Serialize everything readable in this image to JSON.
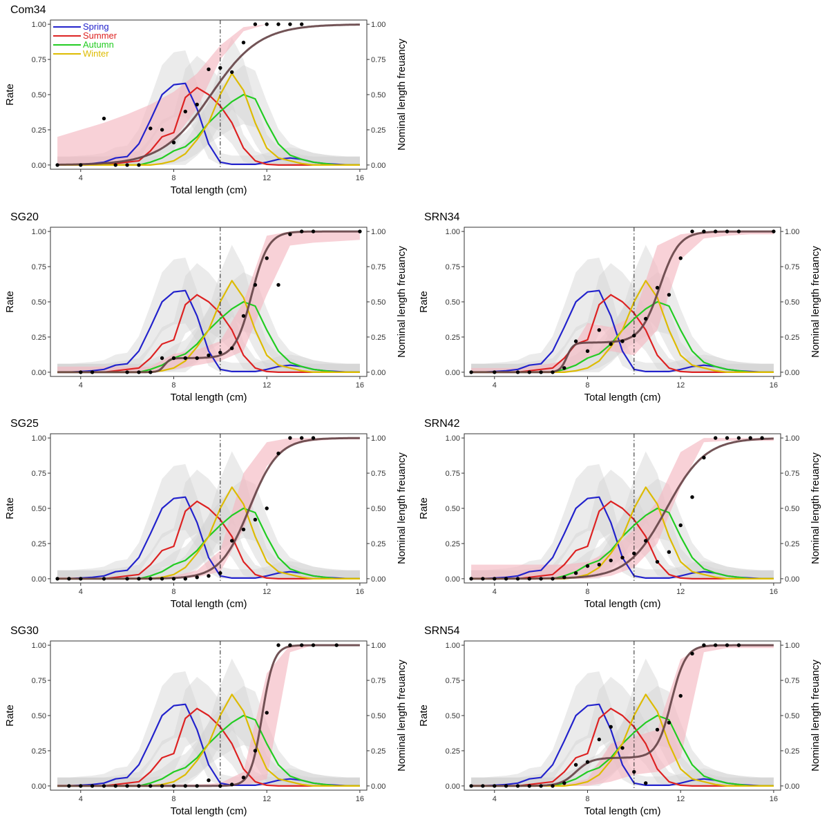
{
  "figure": {
    "xlabel": "Total length (cm)",
    "ylabel": "Rate",
    "y2label": "Nominal length freuancy",
    "xticks": [
      4,
      8,
      12,
      16
    ],
    "yticks": [
      "0.00",
      "0.25",
      "0.50",
      "0.75",
      "1.00"
    ],
    "reference_line_x": 10
  },
  "chart_data": {
    "type": "line",
    "xlim": [
      2.7,
      16.3
    ],
    "ylim": [
      -0.03,
      1.03
    ],
    "colors": {
      "Spring": "#2222cc",
      "Summer": "#dd2222",
      "Autumn": "#22cc22",
      "Winter": "#ddbb00",
      "fit": "#664448",
      "ribbon": "#f4b9c2",
      "band": "#d3d3d3",
      "points": "#000000"
    },
    "legend": {
      "placement": "top-left",
      "entries": [
        "Spring",
        "Summer",
        "Autumn",
        "Winter"
      ]
    },
    "seasons": [
      {
        "name": "Spring",
        "x": [
          3,
          3.5,
          4,
          4.5,
          5,
          5.5,
          6,
          6.5,
          7,
          7.5,
          8,
          8.5,
          9,
          9.5,
          10,
          10.5,
          11,
          11.5,
          12,
          12.5,
          13,
          13.5,
          14,
          14.5,
          15,
          15.5,
          16
        ],
        "values": [
          0,
          0,
          0.005,
          0.01,
          0.02,
          0.05,
          0.06,
          0.15,
          0.32,
          0.5,
          0.57,
          0.58,
          0.4,
          0.15,
          0.02,
          0.005,
          0.005,
          0.005,
          0.02,
          0.04,
          0.05,
          0.04,
          0.02,
          0.01,
          0.005,
          0,
          0
        ]
      },
      {
        "name": "Summer",
        "x": [
          3,
          3.5,
          4,
          4.5,
          5,
          5.5,
          6,
          6.5,
          7,
          7.5,
          8,
          8.5,
          9,
          9.5,
          10,
          10.5,
          11,
          11.5,
          12,
          12.5,
          13,
          13.5,
          14,
          14.5,
          15,
          15.5,
          16
        ],
        "values": [
          0,
          0,
          0,
          0,
          0,
          0.01,
          0.02,
          0.03,
          0.1,
          0.2,
          0.23,
          0.48,
          0.55,
          0.5,
          0.42,
          0.3,
          0.12,
          0.03,
          0.005,
          0,
          0,
          0,
          0,
          0,
          0,
          0,
          0
        ]
      },
      {
        "name": "Autumn",
        "x": [
          3,
          3.5,
          4,
          4.5,
          5,
          5.5,
          6,
          6.5,
          7,
          7.5,
          8,
          8.5,
          9,
          9.5,
          10,
          10.5,
          11,
          11.5,
          12,
          12.5,
          13,
          13.5,
          14,
          14.5,
          15,
          15.5,
          16
        ],
        "values": [
          0,
          0,
          0,
          0,
          0,
          0,
          0,
          0,
          0.02,
          0.05,
          0.1,
          0.13,
          0.2,
          0.3,
          0.38,
          0.45,
          0.5,
          0.47,
          0.3,
          0.15,
          0.07,
          0.04,
          0.02,
          0.01,
          0,
          0,
          0
        ]
      },
      {
        "name": "Winter",
        "x": [
          3,
          3.5,
          4,
          4.5,
          5,
          5.5,
          6,
          6.5,
          7,
          7.5,
          8,
          8.5,
          9,
          9.5,
          10,
          10.5,
          11,
          11.5,
          12,
          12.5,
          13,
          13.5,
          14,
          14.5,
          15,
          15.5,
          16
        ],
        "values": [
          0,
          0,
          0,
          0,
          0,
          0,
          0,
          0,
          0,
          0.01,
          0.03,
          0.08,
          0.18,
          0.3,
          0.5,
          0.65,
          0.53,
          0.3,
          0.12,
          0.05,
          0.03,
          0.01,
          0,
          0,
          0,
          0,
          0
        ]
      }
    ],
    "panels": [
      {
        "title": "Com34",
        "fit_type": "logistic",
        "L50": 9.6,
        "slope": 0.95,
        "ribbon_lo": [
          0.0,
          0.0,
          0.01,
          0.03,
          0.08,
          0.18,
          0.4,
          0.75,
          0.95,
          1.0,
          1.0,
          1.0,
          1.0,
          1.0
        ],
        "ribbon_hi": [
          0.2,
          0.25,
          0.3,
          0.36,
          0.43,
          0.52,
          0.65,
          0.85,
          0.98,
          1.0,
          1.0,
          1.0,
          1.0,
          1.0
        ],
        "points_x": [
          3,
          4,
          5,
          5.5,
          6,
          6.5,
          7,
          7.5,
          8,
          8.5,
          9,
          9.5,
          10,
          10.5,
          11,
          11.5,
          12,
          12.5,
          13,
          13.5
        ],
        "points_y": [
          0,
          0,
          0.33,
          0,
          0,
          0,
          0.26,
          0.25,
          0.16,
          0.38,
          0.43,
          0.68,
          0.69,
          0.66,
          0.87,
          1,
          1,
          1,
          1,
          1
        ]
      },
      {
        "title": "SG20",
        "fit_type": "mixture",
        "w1": 0.1,
        "c1": 7.6,
        "s1": 8,
        "c2": 11.35,
        "s2": 2.8,
        "ribbon_lo": [
          0.0,
          0.0,
          0.0,
          0.0,
          0.0,
          0.02,
          0.05,
          0.08,
          0.15,
          0.55,
          0.9,
          0.92,
          0.93,
          0.94
        ],
        "ribbon_hi": [
          0.04,
          0.04,
          0.04,
          0.04,
          0.04,
          0.13,
          0.16,
          0.22,
          0.5,
          0.97,
          1.0,
          1.0,
          1.0,
          1.0
        ],
        "points_x": [
          4,
          4.5,
          6,
          6.5,
          7,
          7.5,
          8,
          8.5,
          9,
          9.5,
          10,
          10.5,
          11,
          11.5,
          12,
          12.5,
          13,
          13.5,
          14,
          16
        ],
        "points_y": [
          0,
          0,
          0,
          0,
          0,
          0.1,
          0.1,
          0.1,
          0.1,
          0.12,
          0.14,
          0.17,
          0.4,
          0.62,
          0.81,
          0.62,
          0.98,
          1,
          1,
          1
        ]
      },
      {
        "title": "SRN34",
        "fit_type": "mixture",
        "w1": 0.21,
        "c1": 7.1,
        "s1": 7,
        "c2": 11.1,
        "s2": 2.4,
        "ribbon_lo": [
          0.0,
          0.0,
          0.0,
          0.0,
          0.0,
          0.1,
          0.15,
          0.12,
          0.3,
          0.8,
          0.95,
          0.97,
          0.98,
          0.98
        ],
        "ribbon_hi": [
          0.03,
          0.03,
          0.03,
          0.05,
          0.08,
          0.35,
          0.32,
          0.4,
          0.9,
          0.98,
          1.0,
          1.0,
          1.0,
          1.0
        ],
        "points_x": [
          3,
          4,
          5,
          5.5,
          6,
          6.5,
          7,
          7.5,
          8,
          8.5,
          9,
          9.5,
          10,
          10.5,
          11,
          11.5,
          12,
          12.5,
          13,
          13.5,
          14,
          14.5,
          16
        ],
        "points_y": [
          0,
          0,
          0,
          0,
          0,
          0,
          0.03,
          0.22,
          0.15,
          0.3,
          0.2,
          0.22,
          0.26,
          0.38,
          0.6,
          0.55,
          0.81,
          1,
          1,
          1,
          1,
          1,
          1
        ]
      },
      {
        "title": "SG25",
        "fit_type": "logistic",
        "L50": 11.25,
        "slope": 1.6,
        "ribbon_lo": [
          0.0,
          0.0,
          0.0,
          0.0,
          0.0,
          0.0,
          0.01,
          0.05,
          0.35,
          0.8,
          0.95,
          0.98,
          0.99,
          0.99
        ],
        "ribbon_hi": [
          0.01,
          0.01,
          0.01,
          0.01,
          0.01,
          0.02,
          0.06,
          0.2,
          0.75,
          0.97,
          1.0,
          1.0,
          1.0,
          1.0
        ],
        "points_x": [
          3,
          3.5,
          4,
          5,
          6,
          6.5,
          7,
          7.5,
          8,
          8.5,
          9,
          9.5,
          10,
          10.5,
          11,
          11.5,
          12,
          12.5,
          13,
          13.5,
          14
        ],
        "points_y": [
          0,
          0,
          0,
          0,
          0,
          0,
          0,
          0,
          0,
          0,
          0.01,
          0.02,
          0.04,
          0.27,
          0.35,
          0.42,
          0.5,
          0.89,
          1,
          1,
          1
        ]
      },
      {
        "title": "SRN42",
        "fit_type": "logistic",
        "L50": 11.4,
        "slope": 1.2,
        "ribbon_lo": [
          0.0,
          0.0,
          0.0,
          0.0,
          0.0,
          0.0,
          0.02,
          0.08,
          0.25,
          0.65,
          0.97,
          0.98,
          0.98,
          0.98
        ],
        "ribbon_hi": [
          0.1,
          0.1,
          0.1,
          0.1,
          0.1,
          0.12,
          0.2,
          0.35,
          0.55,
          0.9,
          1.0,
          1.0,
          1.0,
          1.0
        ],
        "points_x": [
          3,
          3.5,
          4,
          4.5,
          5,
          5.5,
          6,
          6.5,
          7,
          7.5,
          8,
          8.5,
          9,
          9.5,
          10,
          10.5,
          11,
          11.5,
          12,
          12.5,
          13,
          13.5,
          14,
          14.5,
          15,
          15.5
        ],
        "points_y": [
          0,
          0,
          0,
          0,
          0,
          0,
          0,
          0,
          0.01,
          0.04,
          0.09,
          0.1,
          0.13,
          0.15,
          0.18,
          0.27,
          0.12,
          0.19,
          0.38,
          0.58,
          0.86,
          1,
          1,
          1,
          1,
          1
        ]
      },
      {
        "title": "SG30",
        "fit_type": "logistic",
        "L50": 11.8,
        "slope": 4.0,
        "ribbon_lo": [
          0.0,
          0.0,
          0.0,
          0.0,
          0.0,
          0.0,
          0.0,
          0.0,
          0.0,
          0.05,
          0.95,
          1.0,
          1.0,
          1.0
        ],
        "ribbon_hi": [
          0.01,
          0.01,
          0.01,
          0.01,
          0.01,
          0.01,
          0.01,
          0.02,
          0.1,
          0.8,
          1.0,
          1.0,
          1.0,
          1.0
        ],
        "points_x": [
          3.5,
          4,
          4.5,
          5,
          5.5,
          6,
          6.5,
          7,
          7.5,
          8,
          8.5,
          9,
          9.5,
          10,
          10.5,
          11,
          11.5,
          12,
          12.5,
          13,
          13.5,
          14,
          15
        ],
        "points_y": [
          0,
          0,
          0,
          0,
          0,
          0,
          0,
          0,
          0,
          0,
          0,
          0,
          0.04,
          0,
          0.01,
          0.06,
          0.25,
          0.52,
          1,
          1,
          1,
          1,
          1
        ]
      },
      {
        "title": "SRN54",
        "fit_type": "mixture",
        "w1": 0.2,
        "c1": 7.5,
        "s1": 3,
        "c2": 11.6,
        "s2": 3.2,
        "ribbon_lo": [
          0.0,
          0.0,
          0.0,
          0.0,
          0.0,
          0.0,
          0.03,
          0.08,
          0.1,
          0.2,
          0.95,
          0.98,
          0.98,
          0.98
        ],
        "ribbon_hi": [
          0.01,
          0.01,
          0.01,
          0.01,
          0.01,
          0.05,
          0.3,
          0.35,
          0.4,
          0.9,
          1.0,
          1.0,
          1.0,
          1.0
        ],
        "points_x": [
          3,
          3.5,
          4,
          4.5,
          5,
          5.5,
          6,
          6.5,
          7,
          7.5,
          8,
          8.5,
          9,
          9.5,
          10,
          10.5,
          11,
          11.5,
          12,
          12.5,
          13,
          13.5,
          14,
          14.5
        ],
        "points_y": [
          0,
          0,
          0,
          0,
          0,
          0,
          0,
          0,
          0.02,
          0.15,
          0.17,
          0.33,
          0.42,
          0.27,
          0.1,
          0.02,
          0.4,
          0.45,
          0.64,
          0.94,
          1,
          1,
          1,
          1
        ]
      }
    ]
  }
}
